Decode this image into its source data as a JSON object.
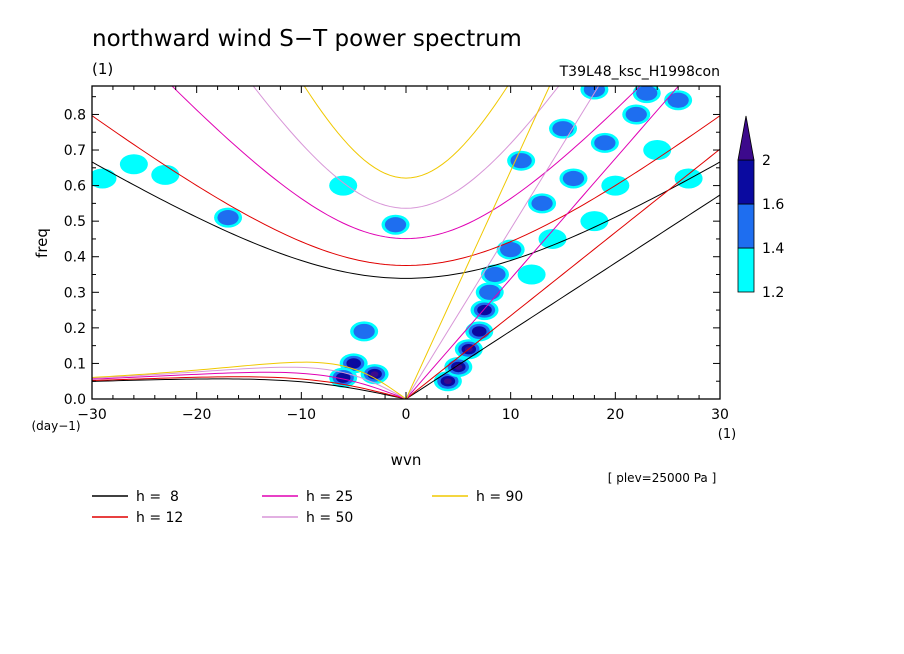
{
  "chart_data": {
    "type": "heatmap",
    "title": "northward wind S−T power spectrum",
    "title_unit": "(1)",
    "experiment": "T39L48_ksc_H1998con",
    "xlabel": "wvn",
    "x_unit": "(1)",
    "ylabel": "freq",
    "y_unit": "(day−1)",
    "xlim": [
      -30,
      30
    ],
    "ylim": [
      0,
      0.88
    ],
    "x_ticks": [
      -30,
      -20,
      -10,
      0,
      10,
      20,
      30
    ],
    "x_tick_labels": [
      "−30",
      "−20",
      "−10",
      "0",
      "10",
      "20",
      "30"
    ],
    "y_ticks": [
      0,
      0.1,
      0.2,
      0.3,
      0.4,
      0.5,
      0.6,
      0.7,
      0.8
    ],
    "y_tick_labels": [
      "0.0",
      "0.1",
      "0.2",
      "0.3",
      "0.4",
      "0.5",
      "0.6",
      "0.7",
      "0.8"
    ],
    "plev_note": "[ plev=25000 Pa ]",
    "colorbar": {
      "levels": [
        1.2,
        1.4,
        1.6,
        2
      ],
      "level_labels": [
        "1.2",
        "1.4",
        "1.6",
        "2"
      ],
      "colors": [
        "#00ffff",
        "#1e6ef0",
        "#0a0aa0",
        "#3c0a8c"
      ]
    },
    "dispersion_curves": [
      {
        "h": 8,
        "label": "h =  8",
        "color": "#000000"
      },
      {
        "h": 12,
        "label": "h = 12",
        "color": "#e00000"
      },
      {
        "h": 25,
        "label": "h = 25",
        "color": "#e000b4"
      },
      {
        "h": 50,
        "label": "h = 50",
        "color": "#d896d8"
      },
      {
        "h": 90,
        "label": "h = 90",
        "color": "#f0c800"
      }
    ],
    "power_blobs": [
      {
        "k": -4,
        "f": 0.19,
        "level": 1
      },
      {
        "k": -5,
        "f": 0.1,
        "level": 2
      },
      {
        "k": -3,
        "f": 0.07,
        "level": 3
      },
      {
        "k": -6,
        "f": 0.06,
        "level": 2
      },
      {
        "k": 4,
        "f": 0.05,
        "level": 3
      },
      {
        "k": 5,
        "f": 0.09,
        "level": 3
      },
      {
        "k": 6,
        "f": 0.14,
        "level": 3
      },
      {
        "k": 7,
        "f": 0.19,
        "level": 2
      },
      {
        "k": 7.5,
        "f": 0.25,
        "level": 2
      },
      {
        "k": 8,
        "f": 0.3,
        "level": 1
      },
      {
        "k": 8.5,
        "f": 0.35,
        "level": 1
      },
      {
        "k": 10,
        "f": 0.42,
        "level": 1
      },
      {
        "k": 13,
        "f": 0.55,
        "level": 1
      },
      {
        "k": 16,
        "f": 0.62,
        "level": 1
      },
      {
        "k": 19,
        "f": 0.72,
        "level": 1
      },
      {
        "k": 22,
        "f": 0.8,
        "level": 1
      },
      {
        "k": 26,
        "f": 0.84,
        "level": 1
      },
      {
        "k": 18,
        "f": 0.87,
        "level": 1
      },
      {
        "k": 23,
        "f": 0.86,
        "level": 1
      },
      {
        "k": 15,
        "f": 0.76,
        "level": 1
      },
      {
        "k": 11,
        "f": 0.67,
        "level": 1
      },
      {
        "k": -1,
        "f": 0.49,
        "level": 1
      },
      {
        "k": -17,
        "f": 0.51,
        "level": 1
      },
      {
        "k": -23,
        "f": 0.63,
        "level": 0
      },
      {
        "k": -26,
        "f": 0.66,
        "level": 0
      },
      {
        "k": -6,
        "f": 0.6,
        "level": 0
      },
      {
        "k": -29,
        "f": 0.62,
        "level": 0
      },
      {
        "k": 20,
        "f": 0.6,
        "level": 0
      },
      {
        "k": 24,
        "f": 0.7,
        "level": 0
      },
      {
        "k": 27,
        "f": 0.62,
        "level": 0
      },
      {
        "k": 12,
        "f": 0.35,
        "level": 0
      },
      {
        "k": 14,
        "f": 0.45,
        "level": 0
      },
      {
        "k": 18,
        "f": 0.5,
        "level": 0
      }
    ]
  }
}
